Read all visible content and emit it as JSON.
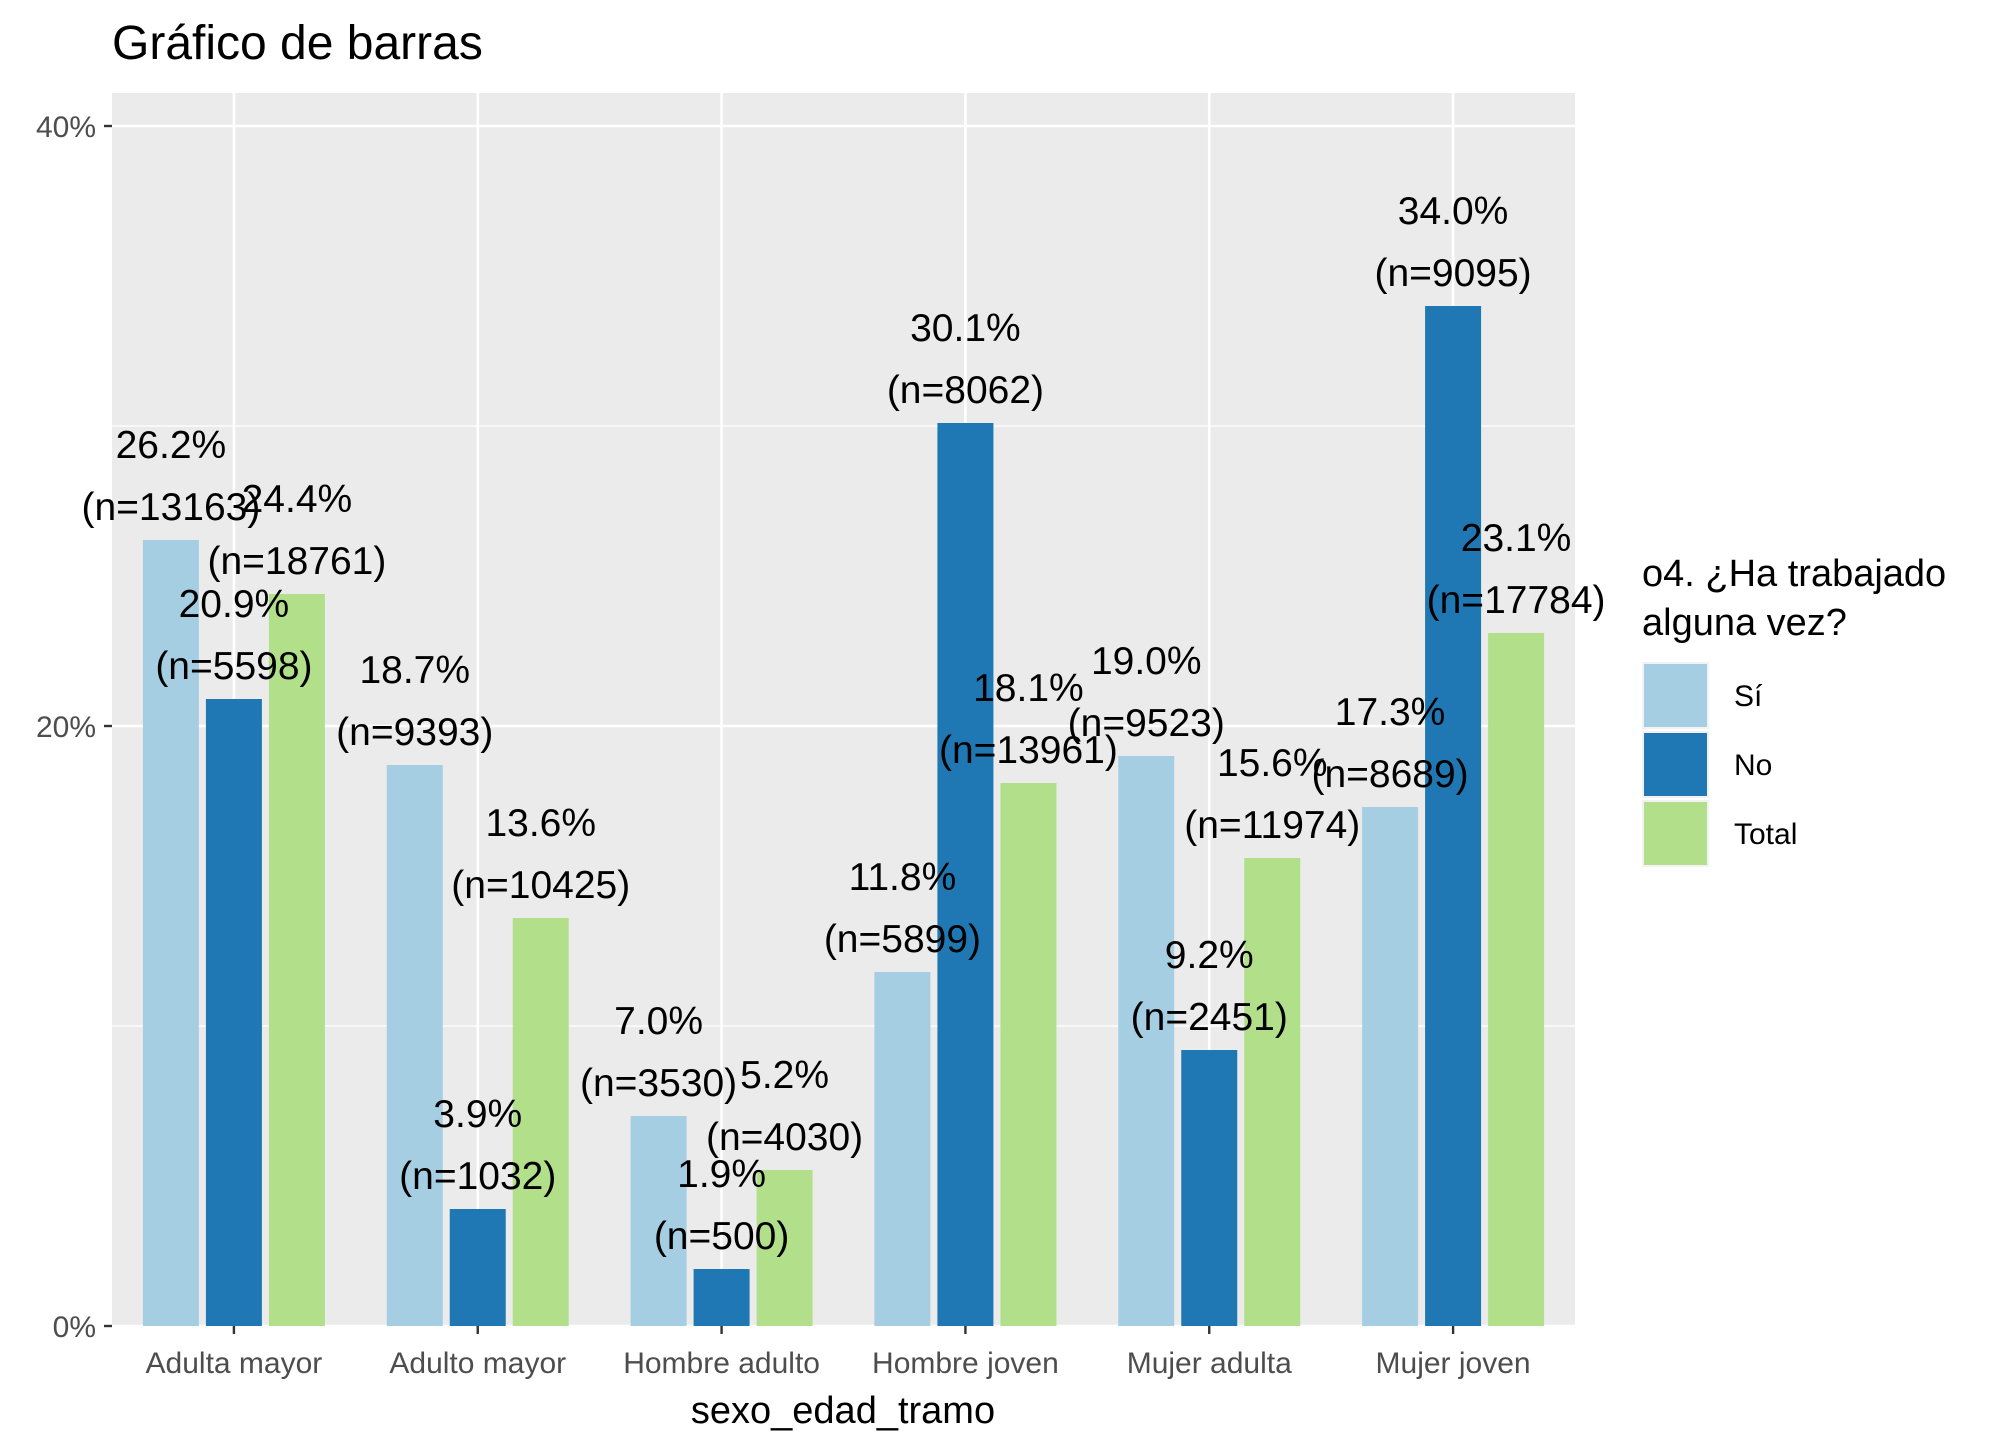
{
  "chart_data": {
    "type": "bar",
    "title": "Gráfico de barras",
    "xlabel": "sexo_edad_tramo",
    "ylabel": "",
    "ylim": [
      0,
      0.425
    ],
    "y_ticks": [
      {
        "value": 0,
        "label": "0%"
      },
      {
        "value": 0.2,
        "label": "20%"
      },
      {
        "value": 0.4,
        "label": "40%"
      }
    ],
    "categories": [
      "Adulta mayor",
      "Adulto mayor",
      "Hombre adulto",
      "Hombre joven",
      "Mujer adulta",
      "Mujer joven"
    ],
    "legend": {
      "title_lines": [
        "o4. ¿Ha trabajado",
        "alguna vez?"
      ],
      "position": "right"
    },
    "grid": true,
    "series": [
      {
        "name": "Sí",
        "color": "#a6cee3",
        "values": [
          0.262,
          0.187,
          0.07,
          0.118,
          0.19,
          0.173
        ],
        "labels": [
          "26.2%",
          "18.7%",
          "7.0%",
          "11.8%",
          "19.0%",
          "17.3%"
        ],
        "counts": [
          "(n=13163)",
          "(n=9393)",
          "(n=3530)",
          "(n=5899)",
          "(n=9523)",
          "(n=8689)"
        ]
      },
      {
        "name": "No",
        "color": "#1f78b4",
        "values": [
          0.209,
          0.039,
          0.019,
          0.301,
          0.092,
          0.34
        ],
        "labels": [
          "20.9%",
          "3.9%",
          "1.9%",
          "30.1%",
          "9.2%",
          "34.0%"
        ],
        "counts": [
          "(n=5598)",
          "(n=1032)",
          "(n=500)",
          "(n=8062)",
          "(n=2451)",
          "(n=9095)"
        ]
      },
      {
        "name": "Total",
        "color": "#b2df8a",
        "values": [
          0.244,
          0.136,
          0.052,
          0.181,
          0.156,
          0.231
        ],
        "labels": [
          "24.4%",
          "13.6%",
          "5.2%",
          "18.1%",
          "15.6%",
          "23.1%"
        ],
        "counts": [
          "(n=18761)",
          "(n=10425)",
          "(n=4030)",
          "(n=13961)",
          "(n=11974)",
          "(n=17784)"
        ]
      }
    ]
  }
}
